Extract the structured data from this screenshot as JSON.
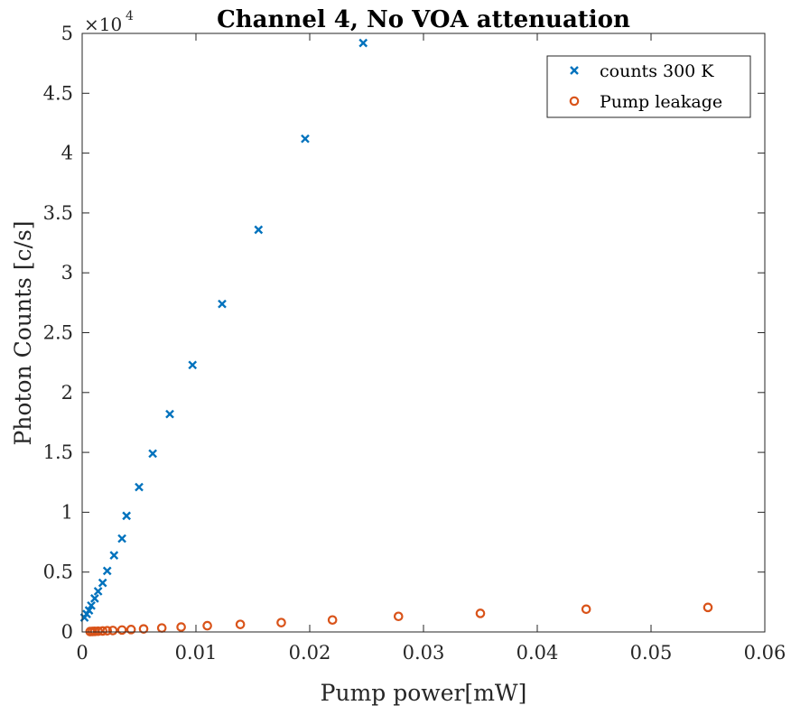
{
  "chart_data": {
    "type": "scatter",
    "title": "Channel 4, No VOA attenuation",
    "xlabel": "Pump power[mW]",
    "ylabel": "Photon Counts [c/s]",
    "xlim": [
      0,
      0.06
    ],
    "ylim": [
      0,
      50000
    ],
    "x_ticks": [
      0,
      0.01,
      0.02,
      0.03,
      0.04,
      0.05,
      0.06
    ],
    "x_tick_labels": [
      "0",
      "0.01",
      "0.02",
      "0.03",
      "0.04",
      "0.05",
      "0.06"
    ],
    "y_ticks": [
      0,
      5000,
      10000,
      15000,
      20000,
      25000,
      30000,
      35000,
      40000,
      45000,
      50000
    ],
    "y_tick_labels": [
      "0",
      "0.5",
      "1",
      "1.5",
      "2",
      "2.5",
      "3",
      "3.5",
      "4",
      "4.5",
      "5"
    ],
    "y_multiplier": "×10",
    "y_multiplier_exponent": "4",
    "grid": false,
    "legend_position": "top-right",
    "series": [
      {
        "name": "counts 300 K",
        "marker": "x",
        "color": "#0072BD",
        "x": [
          0.0002,
          0.0004,
          0.0006,
          0.0008,
          0.0011,
          0.0014,
          0.0018,
          0.0022,
          0.0028,
          0.0035,
          0.0039,
          0.005,
          0.0062,
          0.0077,
          0.0097,
          0.0123,
          0.0155,
          0.0196,
          0.0247
        ],
        "y": [
          1200,
          1500,
          1800,
          2200,
          2800,
          3400,
          4100,
          5100,
          6400,
          7800,
          9700,
          12100,
          14900,
          18200,
          22300,
          27400,
          33600,
          41200,
          49200
        ]
      },
      {
        "name": "Pump leakage",
        "marker": "o",
        "color": "#D95319",
        "x": [
          0.0007,
          0.0009,
          0.0011,
          0.0014,
          0.0018,
          0.0022,
          0.0027,
          0.0035,
          0.0043,
          0.0054,
          0.007,
          0.0087,
          0.011,
          0.0139,
          0.0175,
          0.022,
          0.0278,
          0.035,
          0.0443,
          0.055
        ],
        "y": [
          30,
          40,
          50,
          60,
          80,
          100,
          120,
          160,
          200,
          250,
          330,
          410,
          520,
          630,
          780,
          1000,
          1300,
          1550,
          1900,
          2050
        ]
      }
    ]
  }
}
